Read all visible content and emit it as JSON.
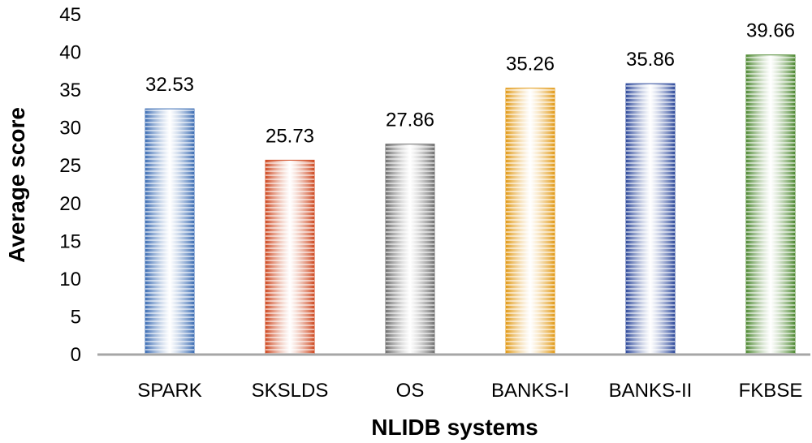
{
  "chart_data": {
    "type": "bar",
    "title": "",
    "xlabel": "NLIDB systems",
    "ylabel": "Average score",
    "ylim": [
      0,
      45
    ],
    "yticks": [
      0,
      5,
      10,
      15,
      20,
      25,
      30,
      35,
      40,
      45
    ],
    "grid": false,
    "legend": "none",
    "categories": [
      "SPARK",
      "SKSLDS",
      "OS",
      "BANKS-I",
      "BANKS-II",
      "FKBSE"
    ],
    "values": [
      32.53,
      25.73,
      27.86,
      35.26,
      35.86,
      39.66
    ],
    "value_labels": [
      "32.53",
      "25.73",
      "27.86",
      "35.26",
      "35.86",
      "39.66"
    ],
    "colors": [
      "#3d6eb4",
      "#cf4a22",
      "#707070",
      "#e29a17",
      "#2f4b9c",
      "#4f8a33"
    ]
  }
}
